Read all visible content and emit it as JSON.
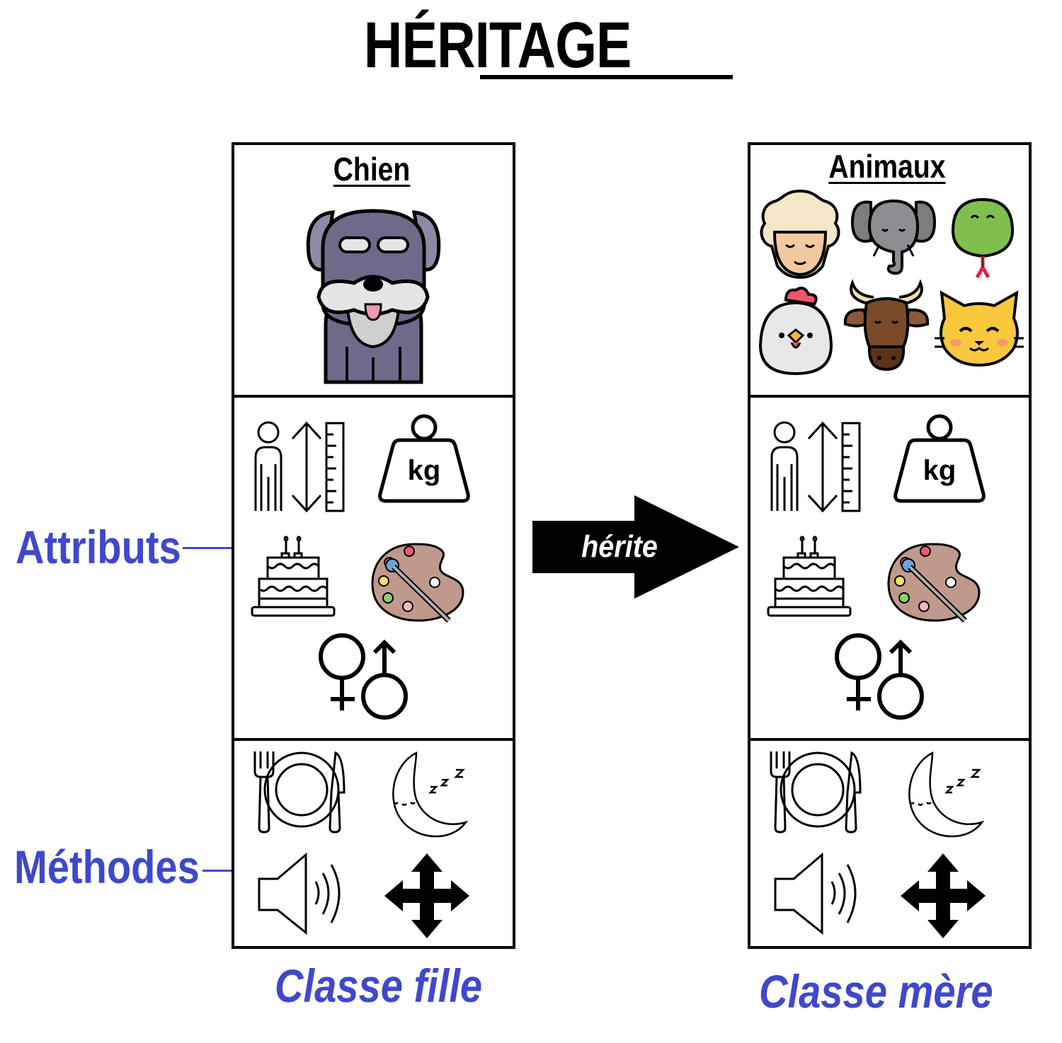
{
  "title": "HÉRITAGE",
  "labels": {
    "attributes": "Attributs",
    "methods": "Méthodes"
  },
  "arrow": {
    "label": "hérite",
    "color": "#000000"
  },
  "colors": {
    "accent": "#3f48cc",
    "stroke": "#000000"
  },
  "child_class": {
    "name": "Chien",
    "caption": "Classe fille",
    "image_icons": [
      "dog-icon"
    ],
    "attribute_icons": [
      "height-icon",
      "weight-kg-icon",
      "birthday-cake-icon",
      "color-palette-icon",
      "gender-icon"
    ],
    "weight_text": "kg",
    "method_icons": [
      "eat-plate-icon",
      "sleep-moon-icon",
      "sound-speaker-icon",
      "move-arrows-icon"
    ]
  },
  "parent_class": {
    "name": "Animaux",
    "caption": "Classe mère",
    "image_icons": [
      "sheep-icon",
      "elephant-icon",
      "snake-icon",
      "chicken-icon",
      "bull-icon",
      "cat-icon"
    ],
    "attribute_icons": [
      "height-icon",
      "weight-kg-icon",
      "birthday-cake-icon",
      "color-palette-icon",
      "gender-icon"
    ],
    "weight_text": "kg",
    "method_icons": [
      "eat-plate-icon",
      "sleep-moon-icon",
      "sound-speaker-icon",
      "move-arrows-icon"
    ]
  }
}
